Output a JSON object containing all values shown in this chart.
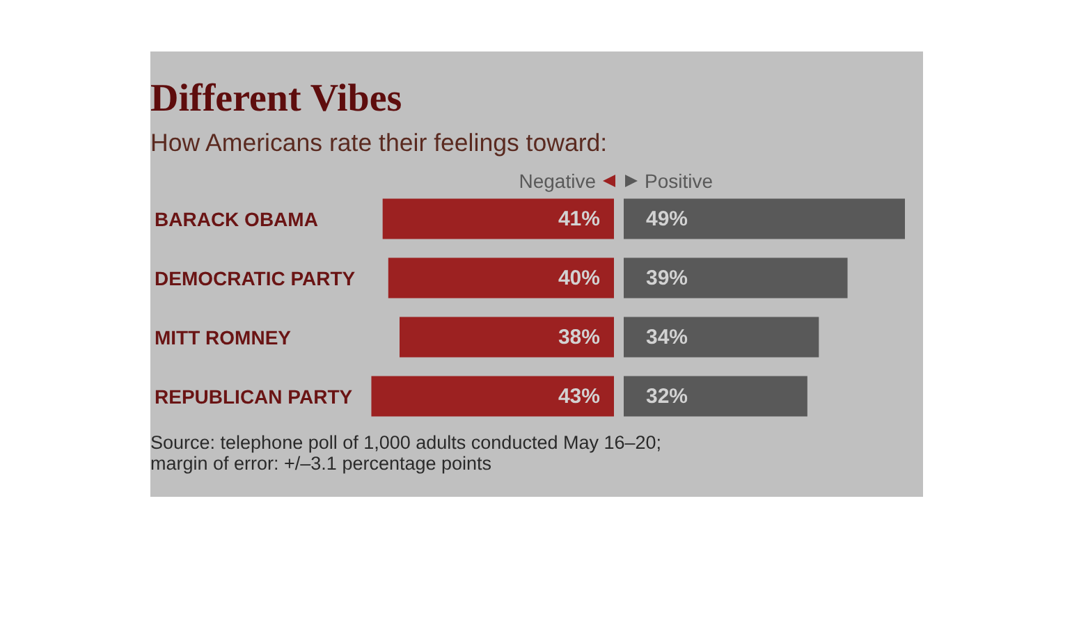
{
  "chart_data": [
    {
      "type": "bar",
      "orientation": "horizontal",
      "title": "Different Vibes",
      "subtitle": "How Americans rate their feelings toward:",
      "categories": [
        "BARACK OBAMA",
        "DEMOCRATIC PARTY",
        "MITT ROMNEY",
        "REPUBLICAN PARTY"
      ],
      "series": [
        {
          "name": "Negative",
          "color": "#9c2121",
          "values": [
            41,
            40,
            38,
            43
          ],
          "value_labels": [
            "41%",
            "40%",
            "38%",
            "43%"
          ]
        }
      ],
      "xlim": [
        43,
        0
      ],
      "tick_labels": "y",
      "legend": "top right",
      "annotations": [
        "Source: telephone poll of 1,000 adults conducted May 16–20;",
        "margin of error: +/–3.1 percentage points"
      ]
    },
    {
      "type": "bar",
      "orientation": "horizontal",
      "categories": [
        null,
        null,
        null,
        null
      ],
      "series": [
        {
          "name": "Positive",
          "color": "#595959",
          "values": [
            49,
            39,
            34,
            32
          ],
          "value_labels": [
            "49%",
            "39%",
            "34%",
            "32%"
          ]
        }
      ],
      "xlim": [
        0,
        49
      ],
      "tick_labels": false,
      "legend": "top left"
    }
  ]
}
